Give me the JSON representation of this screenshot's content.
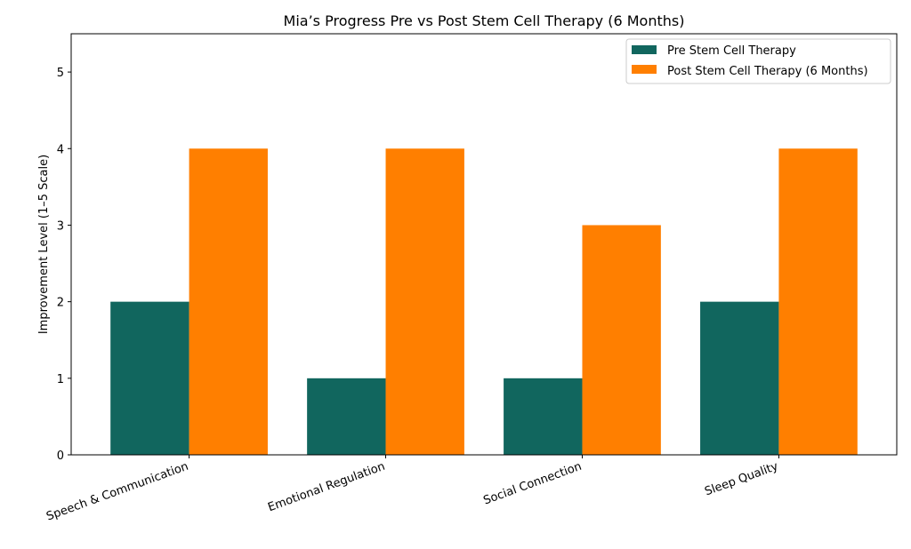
{
  "chart_data": {
    "type": "bar",
    "title": "Mia’s Progress Pre vs Post Stem Cell Therapy (6 Months)",
    "xlabel": "",
    "ylabel": "Improvement Level (1–5 Scale)",
    "ylim": [
      0,
      5.5
    ],
    "yticks": [
      0,
      1,
      2,
      3,
      4,
      5
    ],
    "categories": [
      "Speech & Communication",
      "Emotional Regulation",
      "Social Connection",
      "Sleep Quality"
    ],
    "series": [
      {
        "name": "Pre Stem Cell Therapy",
        "values": [
          2,
          1,
          1,
          2
        ],
        "color": "#11665e"
      },
      {
        "name": "Post Stem Cell Therapy (6 Months)",
        "values": [
          4,
          4,
          3,
          4
        ],
        "color": "#ff7f00"
      }
    ],
    "legend": "top-right",
    "grid": false
  }
}
